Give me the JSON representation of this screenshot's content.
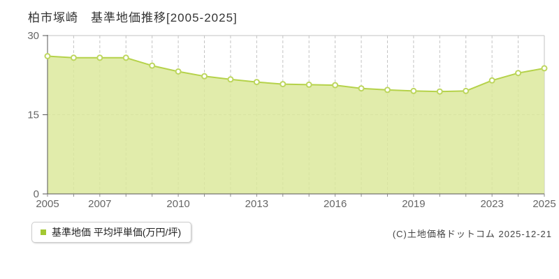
{
  "page": {
    "title": "柏市塚崎　基準地価推移[2005-2025]",
    "copyright": "(C)土地価格ドットコム 2025-12-21"
  },
  "legend": {
    "label": "基準地価 平均坪単価(万円/坪)",
    "marker_color": "#a3c832",
    "position": "bottom-left"
  },
  "chart_data": {
    "type": "area",
    "title": "柏市塚崎 基準地価推移[2005-2025]",
    "series_name": "基準地価 平均坪単価(万円/坪)",
    "x": [
      "2005",
      "2006",
      "2007",
      "2008",
      "2009",
      "2010",
      "2011",
      "2012",
      "2013",
      "2014",
      "2015",
      "2016",
      "2017",
      "2018",
      "2019",
      "2020",
      "2021",
      "2023",
      "2024",
      "2025"
    ],
    "values": [
      26.1,
      25.8,
      25.8,
      25.8,
      24.3,
      23.2,
      22.3,
      21.7,
      21.2,
      20.8,
      20.7,
      20.6,
      20.0,
      19.7,
      19.5,
      19.4,
      19.5,
      21.5,
      22.9,
      23.8
    ],
    "note": "no data point for year 2022",
    "xlabel": "",
    "ylabel": "万円/坪",
    "ylim": [
      0,
      30
    ],
    "yticks": [
      0,
      15,
      30
    ],
    "xtick_labels": [
      "2005",
      "2007",
      "2010",
      "2013",
      "2016",
      "2019",
      "2023",
      "2025"
    ],
    "grid": "vertical dashed line at every data point; horizontal dashed line at 15; solid light top and right borders",
    "legend_position": "bottom-left",
    "colors": {
      "area_fill": "#dbe89b",
      "line": "#b5d24a",
      "marker_fill": "#ffffff",
      "marker_border": "#bdd65e",
      "gridline": "#c3c3c3",
      "axis": "#555555",
      "tick": "#888888",
      "label_text": "#666666",
      "title_text": "#333333"
    }
  }
}
